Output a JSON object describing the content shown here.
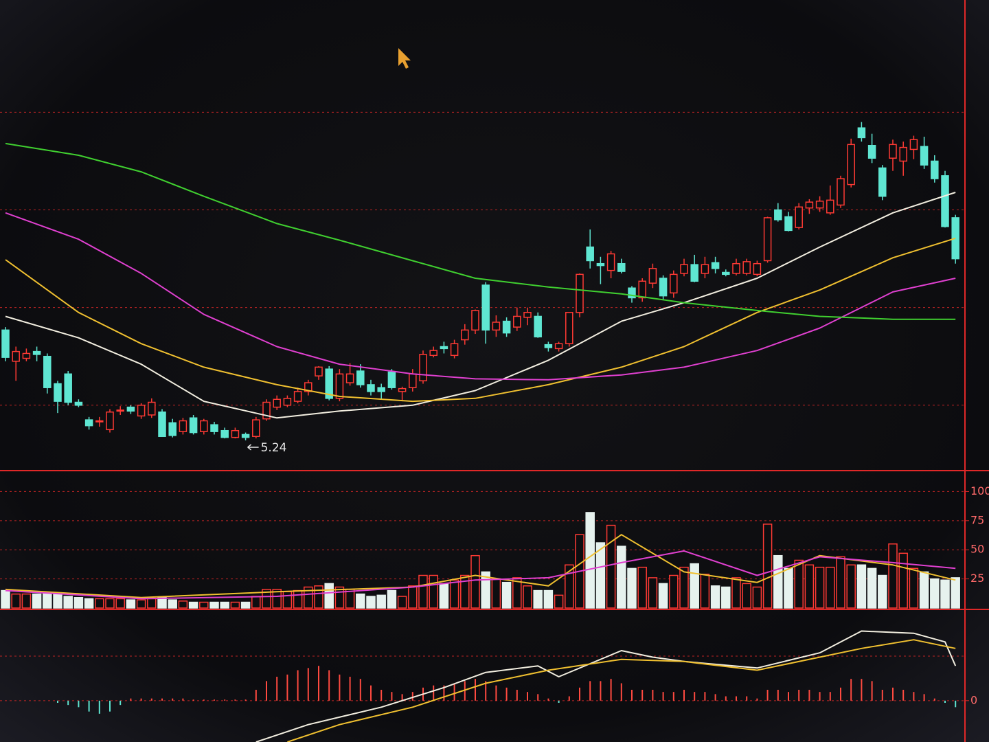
{
  "chart_data": [
    {
      "type": "candlestick",
      "open": [
        6.37,
        6.05,
        6.08,
        6.15,
        6.1,
        5.82,
        5.92,
        5.63,
        5.45,
        5.43,
        5.35,
        5.55,
        5.58,
        5.49,
        5.5,
        5.53,
        5.42,
        5.33,
        5.47,
        5.33,
        5.4,
        5.34,
        5.27,
        5.3,
        5.28,
        5.46,
        5.58,
        5.6,
        5.64,
        5.74,
        5.9,
        5.97,
        5.67,
        5.83,
        5.95,
        5.81,
        5.78,
        5.94,
        5.74,
        5.78,
        5.85,
        6.11,
        6.2,
        6.11,
        6.27,
        6.37,
        6.83,
        6.37,
        6.46,
        6.4,
        6.5,
        6.51,
        6.22,
        6.18,
        6.23,
        6.55,
        7.22,
        7.05,
        6.98,
        7.05,
        6.8,
        6.7,
        6.85,
        6.9,
        6.75,
        6.95,
        7.04,
        6.95,
        7.06,
        6.96,
        6.95,
        6.95,
        6.94,
        7.08,
        7.6,
        7.53,
        7.42,
        7.62,
        7.62,
        7.57,
        7.65,
        7.86,
        8.44,
        8.26,
        8.03,
        8.13,
        8.1,
        8.22,
        8.25,
        8.1,
        7.95,
        7.52
      ],
      "high": [
        6.4,
        6.2,
        6.18,
        6.2,
        6.13,
        5.85,
        5.95,
        5.66,
        5.48,
        5.48,
        5.56,
        5.59,
        5.6,
        5.62,
        5.67,
        5.56,
        5.46,
        5.47,
        5.5,
        5.46,
        5.43,
        5.37,
        5.37,
        5.32,
        5.48,
        5.66,
        5.7,
        5.7,
        5.78,
        5.86,
        6.0,
        6.0,
        5.97,
        6.03,
        6.02,
        5.86,
        5.82,
        5.97,
        5.79,
        5.97,
        6.16,
        6.2,
        6.25,
        6.27,
        6.43,
        6.58,
        6.86,
        6.52,
        6.5,
        6.6,
        6.6,
        6.55,
        6.25,
        6.25,
        6.55,
        6.95,
        7.4,
        7.12,
        7.18,
        7.1,
        6.82,
        6.9,
        7.05,
        6.93,
        6.98,
        7.1,
        7.14,
        7.12,
        7.12,
        6.99,
        7.1,
        7.1,
        7.08,
        7.53,
        7.67,
        7.58,
        7.67,
        7.71,
        7.74,
        7.85,
        7.95,
        8.33,
        8.5,
        8.38,
        8.06,
        8.32,
        8.3,
        8.36,
        8.35,
        8.16,
        8.0,
        7.55
      ],
      "low": [
        6.05,
        5.85,
        6.05,
        6.05,
        5.72,
        5.52,
        5.6,
        5.58,
        5.35,
        5.38,
        5.32,
        5.5,
        5.51,
        5.46,
        5.47,
        5.28,
        5.27,
        5.3,
        5.3,
        5.3,
        5.3,
        5.26,
        5.26,
        5.24,
        5.26,
        5.44,
        5.55,
        5.58,
        5.62,
        5.7,
        5.86,
        5.65,
        5.64,
        5.8,
        5.78,
        5.7,
        5.66,
        5.76,
        5.64,
        5.74,
        5.82,
        6.09,
        6.13,
        6.08,
        6.22,
        6.33,
        6.23,
        6.3,
        6.3,
        6.36,
        6.42,
        6.29,
        6.15,
        6.15,
        6.2,
        6.5,
        7.0,
        6.84,
        6.9,
        6.95,
        6.65,
        6.66,
        6.8,
        6.68,
        6.7,
        6.92,
        6.86,
        6.9,
        6.95,
        6.92,
        6.93,
        6.93,
        6.92,
        7.06,
        7.48,
        7.38,
        7.4,
        7.56,
        7.58,
        7.55,
        7.62,
        7.83,
        8.3,
        8.08,
        7.7,
        8.0,
        7.95,
        8.12,
        8.02,
        7.88,
        7.42,
        7.05
      ],
      "close": [
        6.09,
        6.15,
        6.13,
        6.12,
        5.78,
        5.64,
        5.63,
        5.6,
        5.39,
        5.44,
        5.53,
        5.55,
        5.54,
        5.6,
        5.63,
        5.28,
        5.29,
        5.44,
        5.32,
        5.44,
        5.33,
        5.27,
        5.34,
        5.27,
        5.45,
        5.63,
        5.66,
        5.67,
        5.74,
        5.83,
        5.99,
        5.67,
        5.92,
        5.92,
        5.81,
        5.74,
        5.74,
        5.78,
        5.77,
        5.92,
        6.12,
        6.16,
        6.18,
        6.23,
        6.37,
        6.57,
        6.37,
        6.45,
        6.34,
        6.51,
        6.55,
        6.3,
        6.19,
        6.23,
        6.55,
        6.94,
        7.08,
        7.03,
        7.15,
        6.97,
        6.7,
        6.87,
        7.0,
        6.72,
        6.94,
        7.04,
        6.87,
        7.04,
        7.0,
        6.94,
        7.05,
        7.07,
        7.05,
        7.52,
        7.5,
        7.39,
        7.63,
        7.68,
        7.69,
        7.7,
        7.92,
        8.27,
        8.34,
        8.13,
        7.74,
        8.27,
        8.24,
        8.32,
        8.06,
        7.92,
        7.43,
        7.1
      ],
      "up_color": "#ff3a34",
      "down_color": "#5fe6d2",
      "ylim": [
        4.93,
        9.75
      ],
      "ygrid": [
        5.6,
        6.6,
        7.6,
        8.6
      ],
      "low_label": "5.24",
      "lines": [
        {
          "color": "#f2eee0",
          "x": [
            0,
            7,
            13,
            19,
            26,
            32,
            39,
            45,
            52,
            59,
            65,
            72,
            78,
            85,
            91
          ],
          "values": [
            6.51,
            6.29,
            6.02,
            5.64,
            5.47,
            5.54,
            5.6,
            5.75,
            6.06,
            6.46,
            6.65,
            6.9,
            7.22,
            7.57,
            7.78
          ]
        },
        {
          "color": "#f0c030",
          "x": [
            0,
            7,
            13,
            19,
            26,
            32,
            39,
            45,
            52,
            59,
            65,
            72,
            78,
            85,
            91
          ],
          "values": [
            7.09,
            6.55,
            6.23,
            5.99,
            5.81,
            5.69,
            5.64,
            5.67,
            5.81,
            5.99,
            6.2,
            6.55,
            6.78,
            7.11,
            7.31
          ]
        },
        {
          "color": "#e040d0",
          "x": [
            0,
            7,
            13,
            19,
            26,
            32,
            39,
            45,
            52,
            59,
            65,
            72,
            78,
            85,
            91
          ],
          "values": [
            7.57,
            7.3,
            6.95,
            6.53,
            6.2,
            6.02,
            5.92,
            5.87,
            5.86,
            5.91,
            5.99,
            6.16,
            6.39,
            6.76,
            6.9
          ]
        },
        {
          "color": "#40d030",
          "x": [
            0,
            7,
            13,
            19,
            26,
            32,
            39,
            45,
            52,
            59,
            65,
            72,
            78,
            85,
            91
          ],
          "values": [
            8.28,
            8.16,
            7.99,
            7.74,
            7.46,
            7.29,
            7.08,
            6.9,
            6.81,
            6.74,
            6.65,
            6.57,
            6.51,
            6.48,
            6.48
          ]
        }
      ]
    },
    {
      "type": "bar",
      "color_by": "candles",
      "values": [
        15,
        12,
        12,
        12,
        13,
        12,
        10,
        9,
        8,
        8,
        8,
        8,
        7,
        7,
        8,
        9,
        7,
        6,
        5,
        5,
        5,
        5,
        5,
        5,
        10,
        16,
        16,
        14,
        15,
        18,
        19,
        21,
        18,
        16,
        12,
        10,
        11,
        15,
        10,
        19,
        28,
        28,
        21,
        24,
        28,
        45,
        31,
        25,
        22,
        26,
        19,
        15,
        15,
        11,
        37,
        63,
        82,
        56,
        71,
        53,
        34,
        35,
        26,
        21,
        28,
        35,
        38,
        29,
        19,
        18,
        26,
        21,
        18,
        72,
        45,
        34,
        41,
        37,
        35,
        35,
        44,
        37,
        37,
        34,
        28,
        55,
        47,
        34,
        31,
        25,
        24,
        26
      ],
      "up_color": "#ff3a34",
      "down_color": "#e6f2ee",
      "ylim": [
        0,
        115
      ],
      "yticks": [
        25,
        50,
        75,
        100
      ],
      "lines": [
        {
          "color": "#f0c030",
          "x": [
            0,
            13,
            26,
            39,
            45,
            52,
            59,
            65,
            72,
            78,
            85,
            91
          ],
          "values": [
            16,
            9,
            14,
            18,
            28,
            19,
            63,
            31,
            22,
            45,
            37,
            24
          ]
        },
        {
          "color": "#e040d0",
          "x": [
            0,
            13,
            26,
            39,
            45,
            52,
            59,
            65,
            72,
            78,
            85,
            91
          ],
          "values": [
            15,
            8,
            10,
            18,
            24,
            26,
            39,
            49,
            28,
            44,
            39,
            34
          ]
        }
      ]
    },
    {
      "type": "bar",
      "color_by": "sign",
      "values": [
        0,
        0,
        0,
        0,
        0,
        -0.01,
        -0.02,
        -0.03,
        -0.05,
        -0.06,
        -0.05,
        -0.02,
        0.01,
        0.01,
        0.01,
        0.01,
        0.01,
        0.01,
        0.005,
        0.005,
        0.005,
        0.005,
        0.005,
        0.005,
        0.05,
        0.09,
        0.11,
        0.12,
        0.14,
        0.15,
        0.16,
        0.14,
        0.12,
        0.11,
        0.1,
        0.07,
        0.05,
        0.04,
        0.03,
        0.04,
        0.06,
        0.07,
        0.07,
        0.08,
        0.09,
        0.1,
        0.09,
        0.07,
        0.06,
        0.05,
        0.04,
        0.03,
        0.01,
        -0.01,
        0.02,
        0.06,
        0.09,
        0.09,
        0.1,
        0.08,
        0.05,
        0.05,
        0.05,
        0.04,
        0.04,
        0.05,
        0.04,
        0.04,
        0.03,
        0.02,
        0.02,
        0.02,
        0.01,
        0.05,
        0.05,
        0.04,
        0.05,
        0.05,
        0.04,
        0.04,
        0.06,
        0.1,
        0.1,
        0.09,
        0.05,
        0.06,
        0.05,
        0.04,
        0.03,
        0.01,
        -0.01,
        -0.03
      ],
      "up_color": "#ff4a40",
      "down_color": "#5fe6d2",
      "ylim": [
        -0.19,
        0.41
      ],
      "yticks": [
        0
      ],
      "lines": [
        {
          "color": "#f2eee0",
          "x": [
            24,
            29,
            36,
            42,
            46,
            51,
            53,
            59,
            62,
            65,
            72,
            78,
            82,
            87,
            90,
            91
          ],
          "values": [
            -0.19,
            -0.11,
            -0.03,
            0.06,
            0.13,
            0.16,
            0.11,
            0.23,
            0.2,
            0.18,
            0.15,
            0.22,
            0.32,
            0.31,
            0.27,
            0.16
          ]
        },
        {
          "color": "#f0c030",
          "x": [
            27,
            32,
            39,
            46,
            52,
            59,
            65,
            72,
            78,
            82,
            87,
            91
          ],
          "values": [
            -0.19,
            -0.11,
            -0.03,
            0.08,
            0.14,
            0.19,
            0.18,
            0.14,
            0.2,
            0.24,
            0.28,
            0.24
          ]
        }
      ]
    }
  ]
}
